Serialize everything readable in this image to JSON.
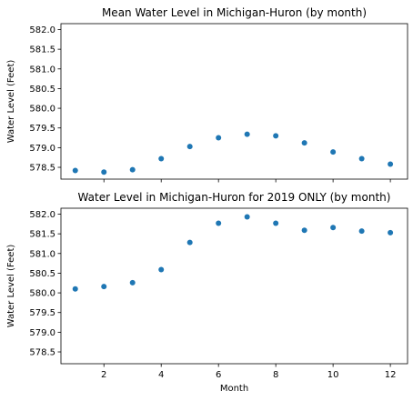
{
  "chart_data": [
    {
      "type": "scatter",
      "title": "Mean Water Level in Michigan-Huron (by month)",
      "xlabel": "",
      "ylabel": "Water Level (Feet)",
      "xlim": [
        0.5,
        12.6
      ],
      "ylim": [
        578.2,
        582.15
      ],
      "xticks": [
        2,
        4,
        6,
        8,
        10,
        12
      ],
      "xtick_labels_visible": false,
      "yticks": [
        578.5,
        579.0,
        579.5,
        580.0,
        580.5,
        581.0,
        581.5,
        582.0
      ],
      "ytick_labels": [
        "578.5",
        "579.0",
        "579.5",
        "580.0",
        "580.5",
        "581.0",
        "581.5",
        "582.0"
      ],
      "color": "#1f77b4",
      "grid": false,
      "x": [
        1,
        2,
        3,
        4,
        5,
        6,
        7,
        8,
        9,
        10,
        11,
        12
      ],
      "y": [
        578.42,
        578.38,
        578.44,
        578.72,
        579.03,
        579.25,
        579.34,
        579.3,
        579.12,
        578.89,
        578.72,
        578.58
      ]
    },
    {
      "type": "scatter",
      "title": "Water Level in Michigan-Huron for 2019 ONLY (by month)",
      "xlabel": "Month",
      "ylabel": "Water Level (Feet)",
      "xlim": [
        0.5,
        12.6
      ],
      "ylim": [
        578.2,
        582.15
      ],
      "xticks": [
        2,
        4,
        6,
        8,
        10,
        12
      ],
      "xtick_labels": [
        "2",
        "4",
        "6",
        "8",
        "10",
        "12"
      ],
      "xtick_labels_visible": true,
      "yticks": [
        578.5,
        579.0,
        579.5,
        580.0,
        580.5,
        581.0,
        581.5,
        582.0
      ],
      "ytick_labels": [
        "578.5",
        "579.0",
        "579.5",
        "580.0",
        "580.5",
        "581.0",
        "581.5",
        "582.0"
      ],
      "color": "#1f77b4",
      "grid": false,
      "x": [
        1,
        2,
        3,
        4,
        5,
        6,
        7,
        8,
        9,
        10,
        11,
        12
      ],
      "y": [
        580.1,
        580.16,
        580.26,
        580.59,
        581.28,
        581.77,
        581.93,
        581.77,
        581.59,
        581.66,
        581.57,
        581.53
      ]
    }
  ]
}
